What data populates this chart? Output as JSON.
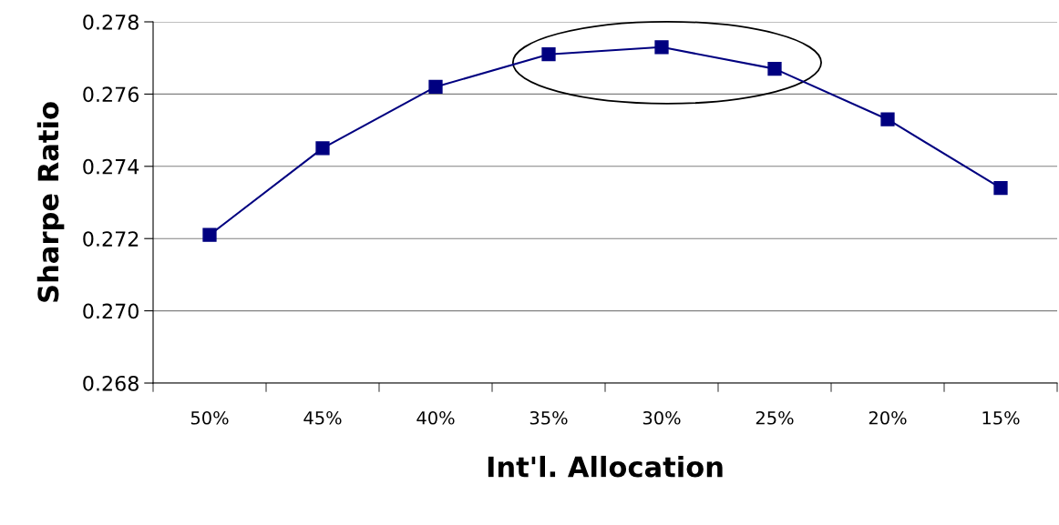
{
  "chart_data": {
    "type": "line",
    "xlabel": "Int'l. Allocation",
    "ylabel": "Sharpe Ratio",
    "categories": [
      "50%",
      "45%",
      "40%",
      "35%",
      "30%",
      "25%",
      "20%",
      "15%"
    ],
    "series": [
      {
        "color": "#000080",
        "values": [
          0.2721,
          0.2745,
          0.2762,
          0.2771,
          0.2773,
          0.2767,
          0.2753,
          0.2734
        ]
      }
    ],
    "ylim": [
      0.268,
      0.278
    ],
    "yticks": [
      {
        "value": 0.268,
        "label": "0.268"
      },
      {
        "value": 0.27,
        "label": "0.270"
      },
      {
        "value": 0.272,
        "label": "0.272"
      },
      {
        "value": 0.274,
        "label": "0.274"
      },
      {
        "value": 0.276,
        "label": "0.276"
      },
      {
        "value": 0.278,
        "label": "0.278"
      }
    ],
    "grid": "y",
    "marker": "square",
    "line_style": "solid"
  }
}
